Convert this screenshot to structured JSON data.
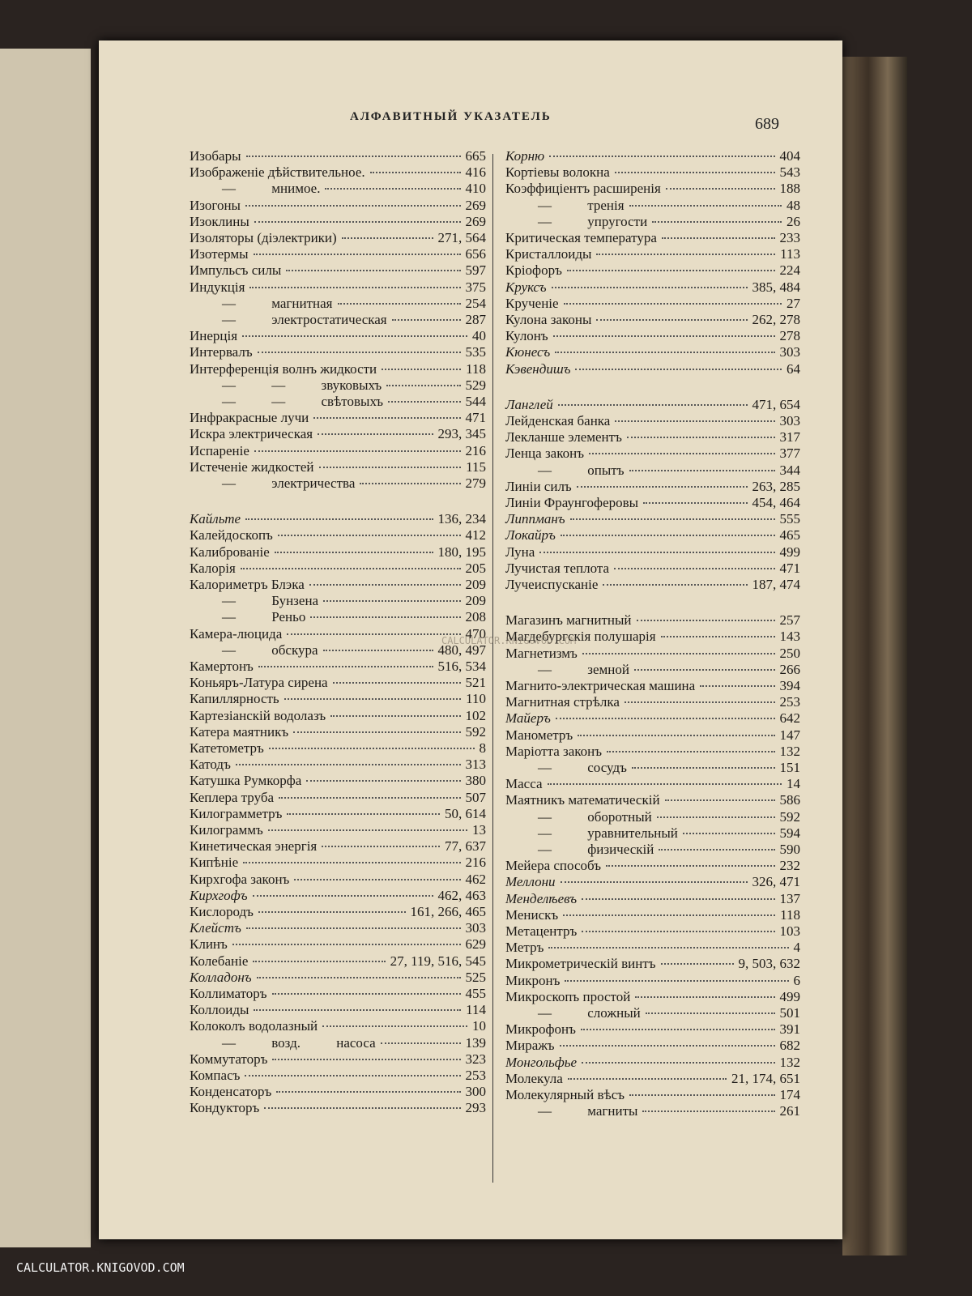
{
  "header": {
    "title": "АЛФАВИТНЫЙ УКАЗАТЕЛЬ",
    "page_number": "689"
  },
  "columns": [
    [
      [
        {
          "term": "Изобары",
          "pages": "665"
        },
        {
          "term": "Изображеніе дѣйствительное.",
          "pages": "416"
        },
        {
          "term": "— мнимое.",
          "pages": "410"
        },
        {
          "term": "Изогоны",
          "pages": "269"
        },
        {
          "term": "Изоклины",
          "pages": "269"
        },
        {
          "term": "Изоляторы (діэлектрики)",
          "pages": "271, 564"
        },
        {
          "term": "Изотермы",
          "pages": "656"
        },
        {
          "term": "Импульсъ силы",
          "pages": "597"
        },
        {
          "term": "Индукція",
          "pages": "375"
        },
        {
          "term": "— магнитная",
          "pages": "254"
        },
        {
          "term": "— электростатическая",
          "pages": "287"
        },
        {
          "term": "Инерція",
          "pages": "40"
        },
        {
          "term": "Интервалъ",
          "pages": "535"
        },
        {
          "term": "Интерференція волнъ жидкости",
          "pages": "118"
        },
        {
          "term": "— — звуковыхъ",
          "pages": "529"
        },
        {
          "term": "— — свѣтовыхъ",
          "pages": "544"
        },
        {
          "term": "Инфракрасные лучи",
          "pages": "471"
        },
        {
          "term": "Искра электрическая",
          "pages": "293, 345"
        },
        {
          "term": "Испареніе",
          "pages": "216"
        },
        {
          "term": "Истеченіе жидкостей",
          "pages": "115"
        },
        {
          "term": "— электричества",
          "pages": "279"
        }
      ],
      [
        {
          "term": "Кайльте",
          "pages": "136, 234",
          "italic": true
        },
        {
          "term": "Калейдоскопъ",
          "pages": "412"
        },
        {
          "term": "Калиброваніе",
          "pages": "180, 195"
        },
        {
          "term": "Калорія",
          "pages": "205"
        },
        {
          "term": "Калориметръ Блэка",
          "pages": "209"
        },
        {
          "term": "— Бунзена",
          "pages": "209"
        },
        {
          "term": "— Реньо",
          "pages": "208"
        },
        {
          "term": "Камера-люцида",
          "pages": "470"
        },
        {
          "term": "— обскура",
          "pages": "480, 497"
        },
        {
          "term": "Камертонъ",
          "pages": "516, 534"
        },
        {
          "term": "Коньяръ-Латура сирена",
          "pages": "521"
        },
        {
          "term": "Капиллярность",
          "pages": "110"
        },
        {
          "term": "Картезіанскій водолазъ",
          "pages": "102"
        },
        {
          "term": "Катера маятникъ",
          "pages": "592"
        },
        {
          "term": "Катетометръ",
          "pages": "8"
        },
        {
          "term": "Катодъ",
          "pages": "313"
        },
        {
          "term": "Катушка Румкорфа",
          "pages": "380"
        },
        {
          "term": "Кеплера труба",
          "pages": "507"
        },
        {
          "term": "Килограмметръ",
          "pages": "50, 614"
        },
        {
          "term": "Килограммъ",
          "pages": "13"
        },
        {
          "term": "Кинетическая энергія",
          "pages": "77, 637"
        },
        {
          "term": "Кипѣніе",
          "pages": "216"
        },
        {
          "term": "Кирхгофа законъ",
          "pages": "462"
        },
        {
          "term": "Кирхгофъ",
          "pages": "462, 463",
          "italic": true
        },
        {
          "term": "Кислородъ",
          "pages": "161, 266, 465"
        },
        {
          "term": "Клейстъ",
          "pages": "303",
          "italic": true
        },
        {
          "term": "Клинъ",
          "pages": "629"
        },
        {
          "term": "Колебаніе",
          "pages": "27, 119, 516, 545"
        },
        {
          "term": "Колладонъ",
          "pages": "525",
          "italic": true
        },
        {
          "term": "Коллиматоръ",
          "pages": "455"
        },
        {
          "term": "Коллоиды",
          "pages": "114"
        },
        {
          "term": "Колоколъ водолазный",
          "pages": "10"
        },
        {
          "term": "— возд. насоса",
          "pages": "139"
        },
        {
          "term": "Коммутаторъ",
          "pages": "323"
        },
        {
          "term": "Компасъ",
          "pages": "253"
        },
        {
          "term": "Конденсаторъ",
          "pages": "300"
        },
        {
          "term": "Кондукторъ",
          "pages": "293"
        }
      ]
    ],
    [
      [
        {
          "term": "Корню",
          "pages": "404",
          "italic": true
        },
        {
          "term": "Кортіевы волокна",
          "pages": "543"
        },
        {
          "term": "Коэффиціентъ расширенія",
          "pages": "188"
        },
        {
          "term": "— тренія",
          "pages": "48"
        },
        {
          "term": "— упругости",
          "pages": "26"
        },
        {
          "term": "Критическая температура",
          "pages": "233"
        },
        {
          "term": "Кристаллоиды",
          "pages": "113"
        },
        {
          "term": "Кріофоръ",
          "pages": "224"
        },
        {
          "term": "Круксъ",
          "pages": "385, 484",
          "italic": true
        },
        {
          "term": "Крученіе",
          "pages": "27"
        },
        {
          "term": "Кулона законы",
          "pages": "262, 278"
        },
        {
          "term": "Кулонъ",
          "pages": "278"
        },
        {
          "term": "Кюнесъ",
          "pages": "303",
          "italic": true
        },
        {
          "term": "Кэвендишъ",
          "pages": "64",
          "italic": true
        }
      ],
      [
        {
          "term": "Ланглей",
          "pages": "471, 654",
          "italic": true
        },
        {
          "term": "Лейденская банка",
          "pages": "303"
        },
        {
          "term": "Лекланше элементъ",
          "pages": "317"
        },
        {
          "term": "Ленца законъ",
          "pages": "377"
        },
        {
          "term": "— опытъ",
          "pages": "344"
        },
        {
          "term": "Линіи силъ",
          "pages": "263, 285"
        },
        {
          "term": "Линіи Фраунгоферовы",
          "pages": "454, 464"
        },
        {
          "term": "Липпманъ",
          "pages": "555",
          "italic": true
        },
        {
          "term": "Локайръ",
          "pages": "465",
          "italic": true
        },
        {
          "term": "Луна",
          "pages": "499"
        },
        {
          "term": "Лучистая теплота",
          "pages": "471"
        },
        {
          "term": "Лучеиспусканіе",
          "pages": "187, 474"
        }
      ],
      [
        {
          "term": "Магазинъ магнитный",
          "pages": "257"
        },
        {
          "term": "Магдебургскія полушарія",
          "pages": "143"
        },
        {
          "term": "Магнетизмъ",
          "pages": "250"
        },
        {
          "term": "— земной",
          "pages": "266"
        },
        {
          "term": "Магнито-электрическая машина",
          "pages": "394"
        },
        {
          "term": "Магнитная стрѣлка",
          "pages": "253"
        },
        {
          "term": "Майеръ",
          "pages": "642",
          "italic": true
        },
        {
          "term": "Манометръ",
          "pages": "147"
        },
        {
          "term": "Маріотта законъ",
          "pages": "132"
        },
        {
          "term": "— сосудъ",
          "pages": "151"
        },
        {
          "term": "Масса",
          "pages": "14"
        },
        {
          "term": "Маятникъ математическій",
          "pages": "586"
        },
        {
          "term": "— оборотный",
          "pages": "592"
        },
        {
          "term": "— уравнительный",
          "pages": "594"
        },
        {
          "term": "— физическій",
          "pages": "590"
        },
        {
          "term": "Мейера способъ",
          "pages": "232"
        },
        {
          "term": "Меллони",
          "pages": "326, 471",
          "italic": true
        },
        {
          "term": "Менделѣевъ",
          "pages": "137",
          "italic": true
        },
        {
          "term": "Менискъ",
          "pages": "118"
        },
        {
          "term": "Метацентръ",
          "pages": "103"
        },
        {
          "term": "Метръ",
          "pages": "4"
        },
        {
          "term": "Микрометрическій винтъ",
          "pages": "9, 503, 632"
        },
        {
          "term": "Микронъ",
          "pages": "6"
        },
        {
          "term": "Микроскопъ простой",
          "pages": "499"
        },
        {
          "term": "— сложный",
          "pages": "501"
        },
        {
          "term": "Микрофонъ",
          "pages": "391"
        },
        {
          "term": "Миражъ",
          "pages": "682"
        },
        {
          "term": "Монгольфье",
          "pages": "132",
          "italic": true
        },
        {
          "term": "Молекула",
          "pages": "21, 174, 651"
        },
        {
          "term": "Молекулярный вѣсъ",
          "pages": "174"
        },
        {
          "term": "— магниты",
          "pages": "261"
        }
      ]
    ]
  ],
  "watermarks": [
    "CALCULATOR.KNIGOVOD.COM",
    "CALCULATOR.KNIGOVOD.COM"
  ]
}
